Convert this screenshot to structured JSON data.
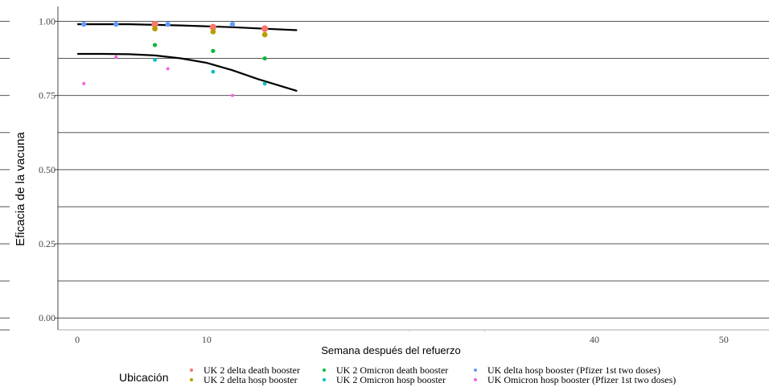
{
  "chart_data": {
    "type": "scatter",
    "title": "",
    "xlabel": "Semana después del refuerzo",
    "ylabel": "Eficacia de la vacuna",
    "xlim": [
      -1.5,
      53.5
    ],
    "ylim": [
      -0.04,
      1.05
    ],
    "x_ticks": [
      0,
      10,
      40,
      50
    ],
    "x_tick_labels": [
      "0",
      "10",
      "40",
      "50"
    ],
    "y_ticks": [
      0,
      0.25,
      0.5,
      0.75,
      1.0
    ],
    "y_tick_labels": [
      "0.00",
      "0.25",
      "0.50",
      "0.75",
      "1.00"
    ],
    "grid": true,
    "legend_position": "bottom",
    "legend_title": "Ubicación",
    "series": [
      {
        "name": "UK 2 delta death booster",
        "color": "#F8766D",
        "points": [
          {
            "x": 6,
            "y": 0.99
          },
          {
            "x": 10.5,
            "y": 0.98
          },
          {
            "x": 14.5,
            "y": 0.975
          }
        ]
      },
      {
        "name": "UK 2 delta hosp booster",
        "color": "#B79F00",
        "points": [
          {
            "x": 6,
            "y": 0.975
          },
          {
            "x": 10.5,
            "y": 0.965
          },
          {
            "x": 14.5,
            "y": 0.955
          }
        ]
      },
      {
        "name": "UK 2 Omicron death booster",
        "color": "#00BA38",
        "points": [
          {
            "x": 6,
            "y": 0.92
          },
          {
            "x": 10.5,
            "y": 0.9
          },
          {
            "x": 14.5,
            "y": 0.875
          }
        ]
      },
      {
        "name": "UK 2 Omicron hosp booster",
        "color": "#00BFC4",
        "points": [
          {
            "x": 6,
            "y": 0.87
          },
          {
            "x": 10.5,
            "y": 0.83
          },
          {
            "x": 14.5,
            "y": 0.79
          }
        ]
      },
      {
        "name": "UK delta hosp booster (Pfizer 1st two doses)",
        "color": "#619CFF",
        "points": [
          {
            "x": 0.5,
            "y": 0.99
          },
          {
            "x": 3,
            "y": 0.99
          },
          {
            "x": 7,
            "y": 0.99
          },
          {
            "x": 12,
            "y": 0.99
          }
        ]
      },
      {
        "name": "UK Omicron hosp booster (Pfizer 1st two doses)",
        "color": "#F564E3",
        "points": [
          {
            "x": 0.5,
            "y": 0.79
          },
          {
            "x": 3,
            "y": 0.88
          },
          {
            "x": 7,
            "y": 0.84
          },
          {
            "x": 12,
            "y": 0.75
          }
        ]
      }
    ],
    "fit_lines": [
      {
        "color": "#000000",
        "points": [
          [
            0,
            0.99
          ],
          [
            2,
            0.99
          ],
          [
            4,
            0.99
          ],
          [
            6,
            0.988
          ],
          [
            8,
            0.986
          ],
          [
            10,
            0.983
          ],
          [
            12,
            0.98
          ],
          [
            14,
            0.976
          ],
          [
            17,
            0.97
          ]
        ]
      },
      {
        "color": "#000000",
        "points": [
          [
            0,
            0.89
          ],
          [
            2,
            0.89
          ],
          [
            4,
            0.889
          ],
          [
            6,
            0.885
          ],
          [
            8,
            0.875
          ],
          [
            10,
            0.86
          ],
          [
            12,
            0.835
          ],
          [
            14,
            0.805
          ],
          [
            17,
            0.765
          ]
        ]
      }
    ]
  }
}
